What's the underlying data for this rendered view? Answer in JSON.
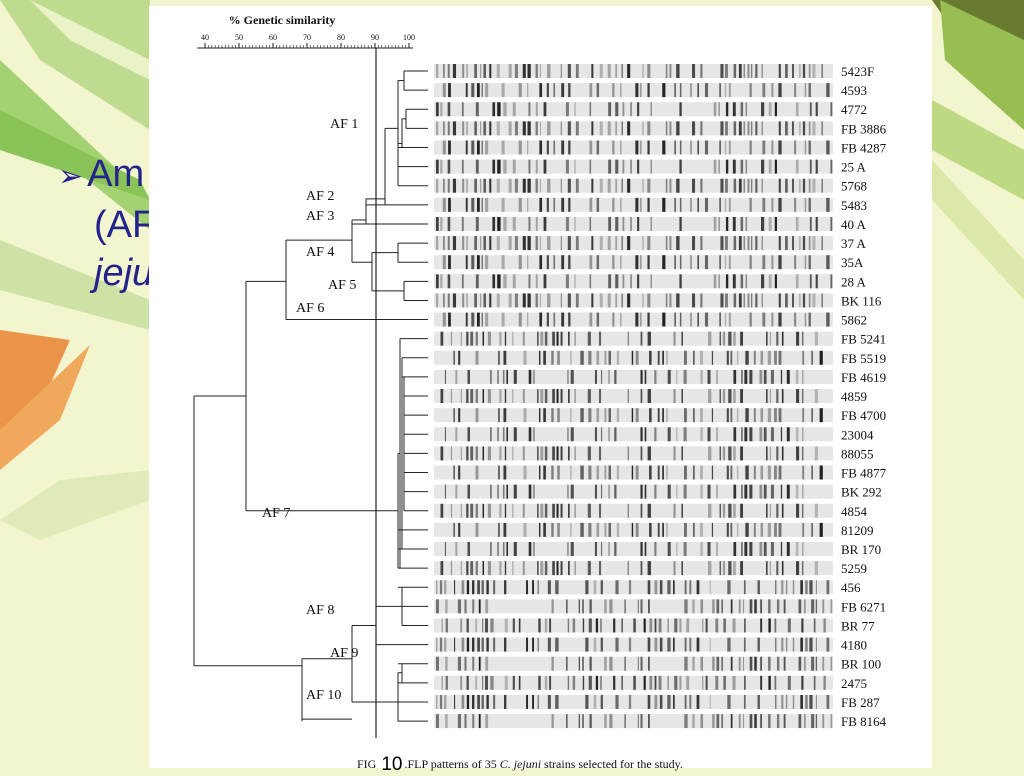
{
  "slide": {
    "bullet_lines": [
      "Am",
      "(AF",
      "jeju"
    ],
    "colors": {
      "background": "#f3f5cf",
      "text": "#23238a"
    }
  },
  "figure": {
    "axis_title": "% Genetic similarity",
    "axis_ticks": [
      "40",
      "50",
      "60",
      "70",
      "80",
      "90",
      "100"
    ],
    "caption": {
      "prefix": "FIG",
      "number": "10",
      "text_before": ".FLP patterns of 35 ",
      "species": "C. jejuni",
      "text_after": " strains selected for the study."
    },
    "clusters": [
      "AF 1",
      "AF 2",
      "AF 3",
      "AF 4",
      "AF 5",
      "AF 6",
      "AF 7",
      "AF 8",
      "AF 9",
      "AF 10"
    ],
    "strains": [
      "5423F",
      "4593",
      "4772",
      "FB 3886",
      "FB 4287",
      "25 A",
      "5768",
      "5483",
      "40 A",
      "37 A",
      "35A",
      "28 A",
      "BK 116",
      "5862",
      "FB 5241",
      "FB 5519",
      "FB 4619",
      "4859",
      "FB 4700",
      "23004",
      "88055",
      "FB 4877",
      "BK 292",
      "4854",
      "81209",
      "BR 170",
      "5259",
      "456",
      "FB 6271",
      "BR 77",
      "4180",
      "BR 100",
      "2475",
      "FB 287",
      "FB 8164"
    ]
  }
}
